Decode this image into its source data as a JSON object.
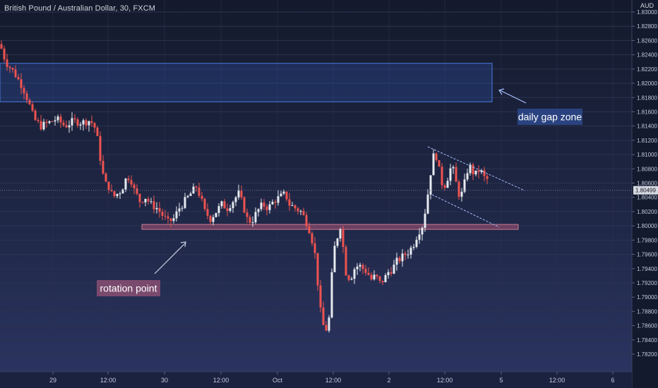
{
  "title": "British Pound / Australian Dollar, 30, FXCM",
  "currency": "AUD",
  "chart_data": {
    "type": "candlestick",
    "title": "British Pound / Australian Dollar, 30, FXCM",
    "ylim": [
      1.817,
      1.901
    ],
    "y_ticks": [
      "1.83000",
      "1.82800",
      "1.82600",
      "1.82400",
      "1.82200",
      "1.82000",
      "1.81800",
      "1.81600",
      "1.81400",
      "1.81200",
      "1.81000",
      "1.80800",
      "1.80600",
      "1.80400",
      "1.80200",
      "1.80000",
      "1.79800",
      "1.79600",
      "1.79400",
      "1.79200",
      "1.79000",
      "1.78800",
      "1.78600",
      "1.78400",
      "1.78200"
    ],
    "y_tick_values": [
      1.83,
      1.828,
      1.826,
      1.824,
      1.822,
      1.82,
      1.818,
      1.816,
      1.814,
      1.812,
      1.81,
      1.808,
      1.806,
      1.804,
      1.802,
      1.8,
      1.798,
      1.796,
      1.794,
      1.792,
      1.79,
      1.788,
      1.786,
      1.784,
      1.782
    ],
    "x_ticks": [
      "29",
      "12:00",
      "30",
      "12:00",
      "Oct",
      "12:00",
      "2",
      "12:00",
      "5",
      "12:00",
      "6"
    ],
    "current_price": "1.80499",
    "current_price_value": 1.80499,
    "grid": true,
    "price_path": [
      [
        0,
        1.8255
      ],
      [
        8,
        1.823
      ],
      [
        20,
        1.8215
      ],
      [
        32,
        1.8195
      ],
      [
        40,
        1.8175
      ],
      [
        48,
        1.815
      ],
      [
        58,
        1.814
      ],
      [
        70,
        1.8145
      ],
      [
        80,
        1.815
      ],
      [
        92,
        1.814
      ],
      [
        104,
        1.8147
      ],
      [
        116,
        1.8145
      ],
      [
        128,
        1.8148
      ],
      [
        136,
        1.8135
      ],
      [
        142,
        1.8095
      ],
      [
        148,
        1.806
      ],
      [
        154,
        1.8055
      ],
      [
        160,
        1.804
      ],
      [
        166,
        1.8045
      ],
      [
        172,
        1.805
      ],
      [
        178,
        1.8065
      ],
      [
        184,
        1.807
      ],
      [
        190,
        1.805
      ],
      [
        198,
        1.8035
      ],
      [
        206,
        1.804
      ],
      [
        214,
        1.803
      ],
      [
        222,
        1.8025
      ],
      [
        230,
        1.8015
      ],
      [
        238,
        1.8005
      ],
      [
        246,
        1.801
      ],
      [
        254,
        1.8025
      ],
      [
        262,
        1.8035
      ],
      [
        270,
        1.8045
      ],
      [
        278,
        1.8055
      ],
      [
        284,
        1.804
      ],
      [
        290,
        1.802
      ],
      [
        298,
        1.801
      ],
      [
        306,
        1.802
      ],
      [
        314,
        1.803
      ],
      [
        322,
        1.8025
      ],
      [
        330,
        1.8035
      ],
      [
        338,
        1.8045
      ],
      [
        344,
        1.803
      ],
      [
        350,
        1.801
      ],
      [
        356,
        1.8005
      ],
      [
        364,
        1.802
      ],
      [
        372,
        1.803
      ],
      [
        380,
        1.8025
      ],
      [
        388,
        1.8035
      ],
      [
        396,
        1.804
      ],
      [
        404,
        1.8045
      ],
      [
        410,
        1.803
      ],
      [
        418,
        1.8025
      ],
      [
        426,
        1.802
      ],
      [
        432,
        1.801
      ],
      [
        440,
        1.799
      ],
      [
        446,
        1.796
      ],
      [
        450,
        1.792
      ],
      [
        454,
        1.788
      ],
      [
        458,
        1.786
      ],
      [
        462,
        1.7855
      ],
      [
        466,
        1.787
      ],
      [
        470,
        1.793
      ],
      [
        474,
        1.797
      ],
      [
        478,
        1.7985
      ],
      [
        482,
        1.8
      ],
      [
        486,
        1.797
      ],
      [
        490,
        1.7935
      ],
      [
        496,
        1.7925
      ],
      [
        502,
        1.794
      ],
      [
        508,
        1.7945
      ],
      [
        514,
        1.794
      ],
      [
        520,
        1.7935
      ],
      [
        526,
        1.7925
      ],
      [
        532,
        1.793
      ],
      [
        538,
        1.792
      ],
      [
        544,
        1.7925
      ],
      [
        550,
        1.7935
      ],
      [
        556,
        1.794
      ],
      [
        562,
        1.795
      ],
      [
        568,
        1.7955
      ],
      [
        574,
        1.796
      ],
      [
        580,
        1.7965
      ],
      [
        586,
        1.7975
      ],
      [
        592,
        1.799
      ],
      [
        598,
        1.8
      ],
      [
        604,
        1.803
      ],
      [
        608,
        1.806
      ],
      [
        612,
        1.809
      ],
      [
        616,
        1.8105
      ],
      [
        620,
        1.809
      ],
      [
        624,
        1.8065
      ],
      [
        628,
        1.8055
      ],
      [
        632,
        1.806
      ],
      [
        636,
        1.8075
      ],
      [
        640,
        1.8085
      ],
      [
        644,
        1.807
      ],
      [
        648,
        1.805
      ],
      [
        652,
        1.804
      ],
      [
        656,
        1.805
      ],
      [
        660,
        1.807
      ],
      [
        664,
        1.8085
      ],
      [
        668,
        1.808
      ],
      [
        672,
        1.807
      ],
      [
        676,
        1.8075
      ],
      [
        680,
        1.808
      ],
      [
        684,
        1.807
      ],
      [
        688,
        1.8065
      ],
      [
        692,
        1.8065
      ]
    ],
    "annotations": [
      {
        "label": "daily gap zone"
      },
      {
        "label": "rotation point"
      }
    ]
  },
  "colors": {
    "up": "#e6eaf0",
    "down": "#ef5350",
    "gap_zone_fill": "#2b4d9e",
    "gap_zone_border": "#4a7be0",
    "support_fill": "#8a4a6a",
    "support_border": "#c77b95",
    "channel": "#a9c0ff",
    "gap_label_bg": "#2a4380",
    "rotation_label_bg": "#7a4a6e",
    "axis_text": "#c3c8d8",
    "grid": "#2c3350"
  }
}
